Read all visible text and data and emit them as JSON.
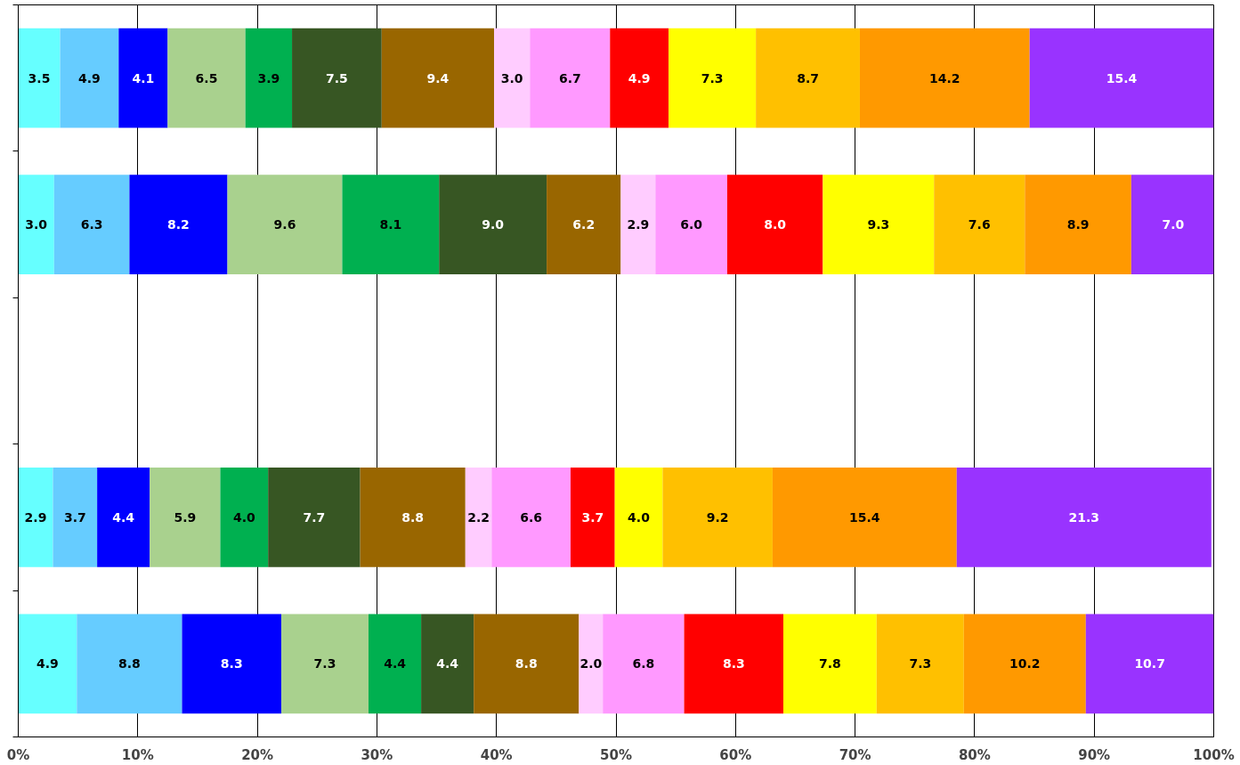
{
  "chart_data": {
    "type": "bar",
    "orientation": "horizontal",
    "stacked": true,
    "grid": "x",
    "tick_labels": "x",
    "categories": [
      null,
      null,
      null,
      null,
      null
    ],
    "xlim": [
      0,
      100
    ],
    "xticks": [
      {
        "value": 0,
        "label": "0%"
      },
      {
        "value": 10,
        "label": "10%"
      },
      {
        "value": 20,
        "label": "20%"
      },
      {
        "value": 30,
        "label": "30%"
      },
      {
        "value": 40,
        "label": "40%"
      },
      {
        "value": 50,
        "label": "50%"
      },
      {
        "value": 60,
        "label": "60%"
      },
      {
        "value": 70,
        "label": "70%"
      },
      {
        "value": 80,
        "label": "80%"
      },
      {
        "value": 90,
        "label": "90%"
      },
      {
        "value": 100,
        "label": "100%"
      }
    ],
    "series": [
      {
        "color": "#66ffff",
        "values": [
          3.5,
          3.0,
          null,
          2.9,
          4.9
        ],
        "value_labels": [
          "3.5",
          "3.0",
          null,
          "2.9",
          "4.9"
        ]
      },
      {
        "color": "#66ccff",
        "values": [
          4.9,
          6.3,
          null,
          3.7,
          8.8
        ],
        "value_labels": [
          "4.9",
          "6.3",
          null,
          "3.7",
          "8.8"
        ]
      },
      {
        "color": "#0000ff",
        "values": [
          4.1,
          8.2,
          null,
          4.4,
          8.3
        ],
        "value_labels": [
          "4.1",
          "8.2",
          null,
          "4.4",
          "8.3"
        ]
      },
      {
        "color": "#a9d18e",
        "values": [
          6.5,
          9.6,
          null,
          5.9,
          7.3
        ],
        "value_labels": [
          "6.5",
          "9.6",
          null,
          "5.9",
          "7.3"
        ]
      },
      {
        "color": "#00b050",
        "values": [
          3.9,
          8.1,
          null,
          4.0,
          4.4
        ],
        "value_labels": [
          "3.9",
          "8.1",
          null,
          "4.0",
          "4.4"
        ]
      },
      {
        "color": "#375623",
        "values": [
          7.5,
          9.0,
          null,
          7.7,
          4.4
        ],
        "value_labels": [
          "7.5",
          "9.0",
          null,
          "7.7",
          "4.4"
        ]
      },
      {
        "color": "#996600",
        "values": [
          9.4,
          6.2,
          null,
          8.8,
          8.8
        ],
        "value_labels": [
          "9.4",
          "6.2",
          null,
          "8.8",
          "8.8"
        ]
      },
      {
        "color": "#ffccff",
        "values": [
          3.0,
          2.9,
          null,
          2.2,
          2.0
        ],
        "value_labels": [
          "3.0",
          "2.9",
          null,
          "2.2",
          "2.0"
        ]
      },
      {
        "color": "#ff99ff",
        "values": [
          6.7,
          6.0,
          null,
          6.6,
          6.8
        ],
        "value_labels": [
          "6.7",
          "6.0",
          null,
          "6.6",
          "6.8"
        ]
      },
      {
        "color": "#ff0000",
        "values": [
          4.9,
          8.0,
          null,
          3.7,
          8.3
        ],
        "value_labels": [
          "4.9",
          "8.0",
          null,
          "3.7",
          "8.3"
        ]
      },
      {
        "color": "#ffff00",
        "values": [
          7.3,
          9.3,
          null,
          4.0,
          7.8
        ],
        "value_labels": [
          "7.3",
          "9.3",
          null,
          "4.0",
          "7.8"
        ]
      },
      {
        "color": "#ffc000",
        "values": [
          8.7,
          7.6,
          null,
          9.2,
          7.3
        ],
        "value_labels": [
          "8.7",
          "7.6",
          null,
          "9.2",
          "7.3"
        ]
      },
      {
        "color": "#ff9900",
        "values": [
          14.2,
          8.9,
          null,
          15.4,
          10.2
        ],
        "value_labels": [
          "14.2",
          "8.9",
          null,
          "15.4",
          "10.2"
        ]
      },
      {
        "color": "#9933ff",
        "values": [
          15.4,
          7.0,
          null,
          21.3,
          10.7
        ],
        "value_labels": [
          "15.4",
          "7.0",
          null,
          "21.3",
          "10.7"
        ]
      }
    ]
  }
}
